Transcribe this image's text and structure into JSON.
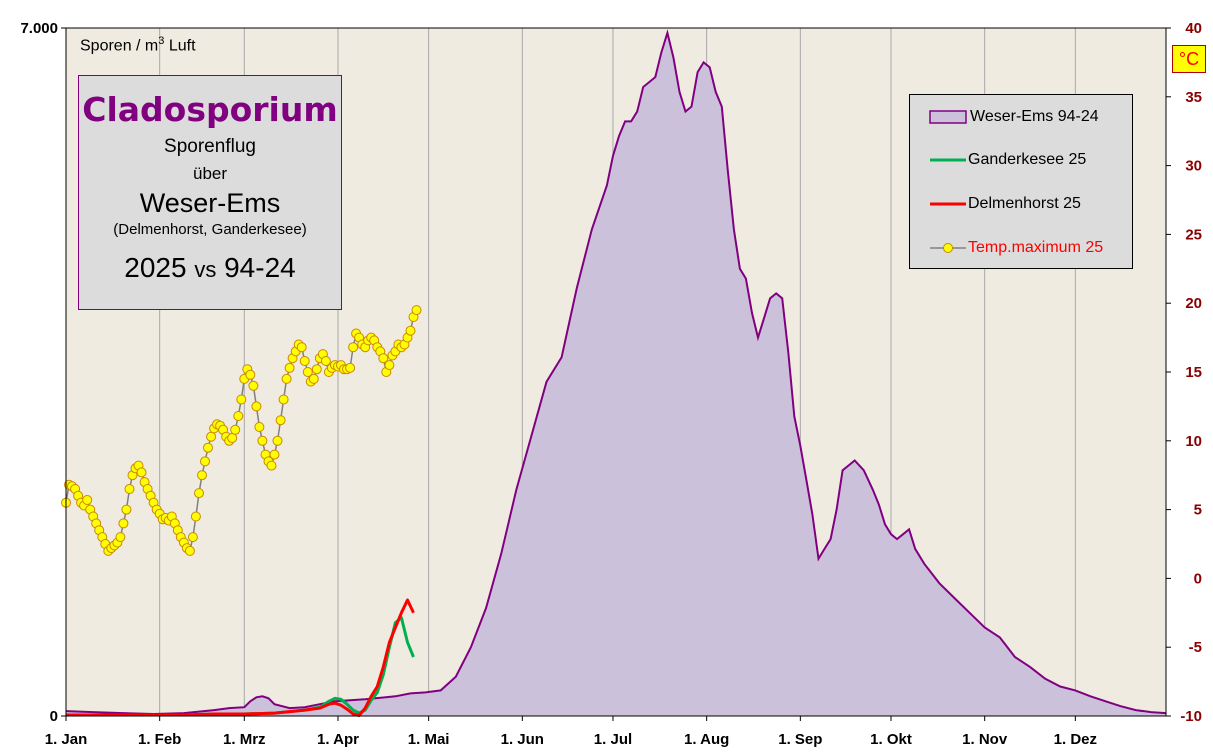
{
  "title": {
    "main": "Cladosporium",
    "line1": "Sporenflug",
    "line2": "über",
    "region": "Weser-Ems",
    "cities": "(Delmenhorst,  Ganderkesee)",
    "compare_a": "2025",
    "compare_vs": "vs",
    "compare_b": "94-24"
  },
  "y_unit": {
    "text": "Sporen / m",
    "sup": "3",
    "tail": " Luft"
  },
  "y2_unit": "°C",
  "legend": [
    {
      "label": "Weser-Ems 94-24",
      "color": "#800080"
    },
    {
      "label": "Ganderkesee 25",
      "color": "#00b050"
    },
    {
      "label": "Delmenhorst 25",
      "color": "#ff0000"
    },
    {
      "label": "Temp.maximum 25",
      "color": "#ff0000"
    }
  ],
  "colors": {
    "plot_bg": "#efebe0",
    "area_fill": "#ccc1da",
    "area_line": "#800080",
    "ganderkesee": "#00b050",
    "delmenhorst": "#ff0000",
    "temp_marker": "#ffff00",
    "temp_marker_edge": "#cc8800",
    "temp_line": "#808080"
  },
  "chart_data": {
    "type": "area",
    "title": "Cladosporium",
    "ylabel": "Sporen / m3 Luft",
    "y2label": "°C",
    "ylim": [
      0,
      7000
    ],
    "y2lim": [
      -10,
      40
    ],
    "x_unit": "day of year",
    "xlim": [
      1,
      365
    ],
    "x_tick_labels": [
      "1. Jan",
      "1. Feb",
      "1. Mrz",
      "1. Apr",
      "1. Mai",
      "1. Jun",
      "1. Jul",
      "1. Aug",
      "1. Sep",
      "1. Okt",
      "1. Nov",
      "1. Dez"
    ],
    "x_tick_days": [
      1,
      32,
      60,
      91,
      121,
      152,
      182,
      213,
      244,
      274,
      305,
      335
    ],
    "y_tick_labels": [
      "0",
      "7.000"
    ],
    "y2_tick_labels": [
      "-10",
      "-5",
      "0",
      "5",
      "10",
      "15",
      "20",
      "25",
      "30",
      "35",
      "40"
    ],
    "grid": "vertical",
    "legend_position": "top-right",
    "series": [
      {
        "name": "Weser-Ems 94-24",
        "kind": "area",
        "axis": "left",
        "x": [
          1,
          10,
          20,
          30,
          40,
          50,
          55,
          60,
          62,
          64,
          66,
          68,
          70,
          75,
          80,
          85,
          90,
          95,
          100,
          110,
          115,
          120,
          125,
          130,
          135,
          140,
          145,
          150,
          155,
          160,
          165,
          170,
          175,
          180,
          182,
          184,
          186,
          188,
          190,
          192,
          196,
          198,
          200,
          202,
          204,
          206,
          208,
          210,
          212,
          214,
          216,
          218,
          220,
          222,
          224,
          226,
          228,
          230,
          232,
          234,
          236,
          238,
          240,
          242,
          244,
          246,
          248,
          250,
          252,
          254,
          256,
          258,
          260,
          262,
          265,
          268,
          270,
          272,
          274,
          276,
          278,
          280,
          282,
          285,
          290,
          295,
          300,
          305,
          310,
          315,
          320,
          325,
          330,
          335,
          340,
          345,
          350,
          355,
          360,
          365
        ],
        "values": [
          50,
          40,
          30,
          20,
          30,
          60,
          80,
          90,
          150,
          190,
          200,
          180,
          120,
          80,
          90,
          120,
          150,
          160,
          170,
          200,
          230,
          240,
          260,
          400,
          700,
          1100,
          1650,
          2300,
          2850,
          3400,
          3650,
          4350,
          4950,
          5400,
          5700,
          5900,
          6050,
          6050,
          6150,
          6400,
          6500,
          6750,
          6950,
          6700,
          6350,
          6150,
          6200,
          6550,
          6650,
          6600,
          6350,
          6200,
          5550,
          4950,
          4550,
          4450,
          4100,
          3850,
          4050,
          4250,
          4300,
          4250,
          3700,
          3050,
          2750,
          2400,
          2050,
          1600,
          1700,
          1800,
          2100,
          2500,
          2550,
          2600,
          2500,
          2300,
          2150,
          1950,
          1850,
          1800,
          1850,
          1900,
          1700,
          1550,
          1350,
          1200,
          1050,
          900,
          800,
          600,
          500,
          380,
          300,
          260,
          200,
          150,
          100,
          60,
          40,
          30
        ]
      },
      {
        "name": "Ganderkesee 25",
        "kind": "line",
        "axis": "left",
        "x": [
          1,
          10,
          20,
          30,
          40,
          50,
          60,
          70,
          80,
          85,
          88,
          90,
          92,
          94,
          96,
          98,
          100,
          102,
          104,
          106,
          108,
          110,
          112,
          114,
          116
        ],
        "values": [
          10,
          10,
          10,
          10,
          10,
          20,
          20,
          30,
          60,
          90,
          150,
          180,
          170,
          120,
          60,
          30,
          60,
          160,
          240,
          420,
          700,
          950,
          1000,
          750,
          600
        ]
      },
      {
        "name": "Delmenhorst 25",
        "kind": "line",
        "axis": "left",
        "x": [
          1,
          10,
          20,
          30,
          40,
          50,
          60,
          70,
          80,
          85,
          88,
          90,
          92,
          94,
          96,
          98,
          100,
          102,
          104,
          106,
          108,
          110,
          112,
          114,
          116
        ],
        "values": [
          10,
          10,
          10,
          10,
          10,
          20,
          20,
          30,
          60,
          80,
          120,
          130,
          110,
          70,
          20,
          5,
          80,
          200,
          300,
          500,
          750,
          900,
          1050,
          1180,
          1050
        ]
      },
      {
        "name": "Temp.maximum 25",
        "kind": "line+markers",
        "axis": "right",
        "x": [
          1,
          2,
          3,
          4,
          5,
          6,
          7,
          8,
          9,
          10,
          11,
          12,
          13,
          14,
          15,
          16,
          17,
          18,
          19,
          20,
          21,
          22,
          23,
          24,
          25,
          26,
          27,
          28,
          29,
          30,
          31,
          32,
          33,
          34,
          35,
          36,
          37,
          38,
          39,
          40,
          41,
          42,
          43,
          44,
          45,
          46,
          47,
          48,
          49,
          50,
          51,
          52,
          53,
          54,
          55,
          56,
          57,
          58,
          59,
          60,
          61,
          62,
          63,
          64,
          65,
          66,
          67,
          68,
          69,
          70,
          71,
          72,
          73,
          74,
          75,
          76,
          77,
          78,
          79,
          80,
          81,
          82,
          83,
          84,
          85,
          86,
          87,
          88,
          89,
          90,
          91,
          92,
          93,
          94,
          95,
          96,
          97,
          98,
          99,
          100,
          101,
          102,
          103,
          104,
          105,
          106,
          107,
          108,
          109,
          110,
          111,
          112,
          113,
          114,
          115,
          116,
          117
        ],
        "values": [
          5.5,
          6.8,
          6.7,
          6.5,
          6.0,
          5.5,
          5.3,
          5.7,
          5.0,
          4.5,
          4.0,
          3.5,
          3.0,
          2.5,
          2.0,
          2.2,
          2.4,
          2.6,
          3.0,
          4.0,
          5.0,
          6.5,
          7.5,
          8.0,
          8.2,
          7.7,
          7.0,
          6.5,
          6.0,
          5.5,
          5.0,
          4.7,
          4.3,
          4.4,
          4.2,
          4.5,
          4.0,
          3.5,
          3.0,
          2.6,
          2.2,
          2.0,
          3.0,
          4.5,
          6.2,
          7.5,
          8.5,
          9.5,
          10.3,
          10.9,
          11.2,
          11.1,
          10.8,
          10.3,
          10.0,
          10.2,
          10.8,
          11.8,
          13.0,
          14.5,
          15.2,
          14.8,
          14.0,
          12.5,
          11.0,
          10.0,
          9.0,
          8.5,
          8.2,
          9.0,
          10.0,
          11.5,
          13.0,
          14.5,
          15.3,
          16.0,
          16.5,
          17.0,
          16.8,
          15.8,
          15.0,
          14.3,
          14.5,
          15.2,
          16.0,
          16.3,
          15.8,
          15.0,
          15.3,
          15.5,
          15.4,
          15.5,
          15.2,
          15.2,
          15.3,
          16.8,
          17.8,
          17.5,
          17.0,
          16.8,
          17.3,
          17.5,
          17.3,
          16.8,
          16.5,
          16.0,
          15.0,
          15.5,
          16.2,
          16.5,
          17.0,
          16.8,
          17.0,
          17.5,
          18.0,
          19.0,
          19.5
        ]
      }
    ]
  }
}
